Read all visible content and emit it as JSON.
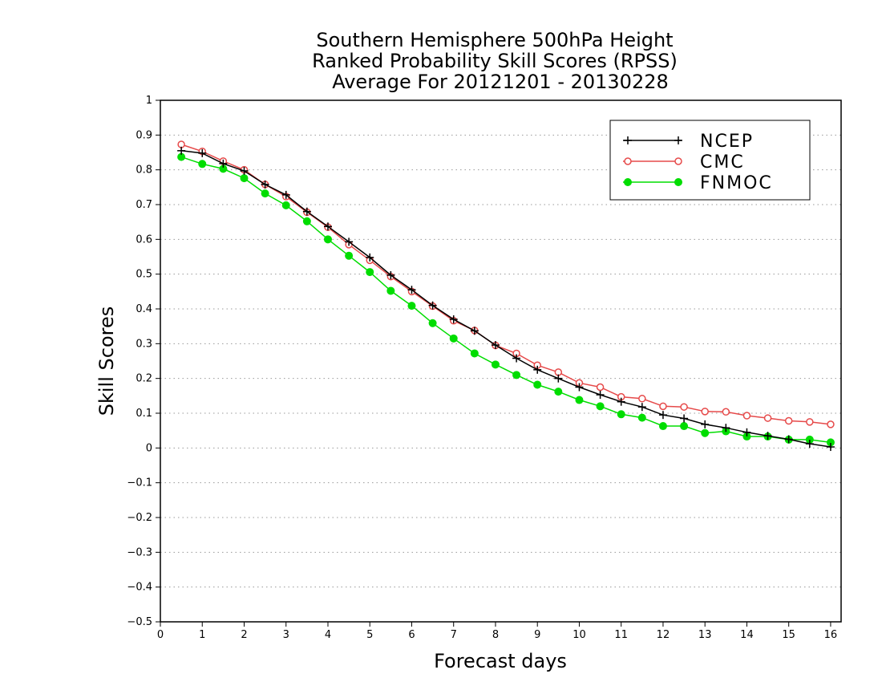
{
  "chart_data": {
    "type": "line",
    "title_lines": [
      "Southern Hemisphere 500hPa Height",
      "Ranked Probability Skill Scores (RPSS)",
      "Average For 20121201 - 20130228"
    ],
    "xlabel": "Forecast days",
    "ylabel": "Skill Scores",
    "xlim": [
      0,
      16.25
    ],
    "ylim": [
      -0.5,
      1
    ],
    "xticks": [
      0,
      1,
      2,
      3,
      4,
      5,
      6,
      7,
      8,
      9,
      10,
      11,
      12,
      13,
      14,
      15,
      16
    ],
    "xtick_labels": [
      "0",
      "1",
      "2",
      "3",
      "4",
      "5",
      "6",
      "7",
      "8",
      "9",
      "10",
      "11",
      "12",
      "13",
      "14",
      "15",
      "16"
    ],
    "yticks": [
      -0.5,
      -0.4,
      -0.3,
      -0.2,
      -0.1,
      0,
      0.1,
      0.2,
      0.3,
      0.4,
      0.5,
      0.6,
      0.7,
      0.8,
      0.9,
      1
    ],
    "ytick_labels": [
      "−0.5",
      "−0.4",
      "−0.3",
      "−0.2",
      "−0.1",
      "0",
      "0.1",
      "0.2",
      "0.3",
      "0.4",
      "0.5",
      "0.6",
      "0.7",
      "0.8",
      "0.9",
      "1"
    ],
    "grid": true,
    "legend_position": "top-right",
    "x": [
      0.5,
      1,
      1.5,
      2,
      2.5,
      3,
      3.5,
      4,
      4.5,
      5,
      5.5,
      6,
      6.5,
      7,
      7.5,
      8,
      8.5,
      9,
      9.5,
      10,
      10.5,
      11,
      11.5,
      12,
      12.5,
      13,
      13.5,
      14,
      14.5,
      15,
      15.5,
      16
    ],
    "series": [
      {
        "name": "NCEP",
        "color": "#000000",
        "marker": "plus",
        "values": [
          0.855,
          0.848,
          0.818,
          0.797,
          0.758,
          0.728,
          0.68,
          0.637,
          0.593,
          0.548,
          0.497,
          0.455,
          0.41,
          0.37,
          0.337,
          0.296,
          0.258,
          0.225,
          0.2,
          0.175,
          0.153,
          0.133,
          0.118,
          0.095,
          0.085,
          0.068,
          0.058,
          0.045,
          0.035,
          0.025,
          0.012,
          0.003
        ]
      },
      {
        "name": "CMC",
        "color": "#e64a4a",
        "marker": "open-circle",
        "values": [
          0.873,
          0.853,
          0.825,
          0.8,
          0.758,
          0.723,
          0.678,
          0.635,
          0.585,
          0.54,
          0.493,
          0.45,
          0.408,
          0.366,
          0.338,
          0.295,
          0.272,
          0.238,
          0.218,
          0.187,
          0.175,
          0.147,
          0.142,
          0.12,
          0.118,
          0.105,
          0.104,
          0.093,
          0.086,
          0.078,
          0.075,
          0.068
        ]
      },
      {
        "name": "FNMOC",
        "color": "#00dd00",
        "marker": "filled-circle",
        "values": [
          0.837,
          0.817,
          0.803,
          0.776,
          0.732,
          0.698,
          0.652,
          0.6,
          0.553,
          0.506,
          0.452,
          0.409,
          0.359,
          0.315,
          0.272,
          0.24,
          0.21,
          0.182,
          0.162,
          0.138,
          0.12,
          0.097,
          0.087,
          0.063,
          0.063,
          0.043,
          0.048,
          0.033,
          0.033,
          0.024,
          0.024,
          0.016
        ]
      }
    ]
  }
}
